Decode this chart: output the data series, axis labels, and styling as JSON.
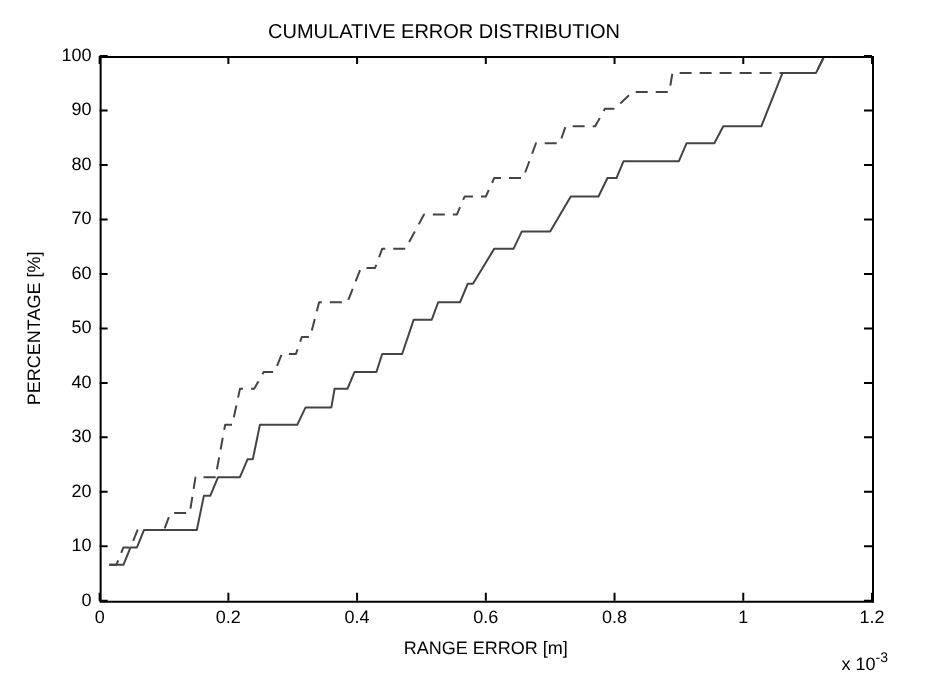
{
  "chart_data": {
    "type": "line",
    "title": "CUMULATIVE ERROR DISTRIBUTION",
    "xlabel": "RANGE ERROR [m]",
    "ylabel": "PERCENTAGE [%]",
    "annotations": [
      "x 10$^{-3}$"
    ],
    "xlim": [
      0,
      1.2
    ],
    "xticks": [
      0,
      0.2,
      0.4,
      0.6,
      0.8,
      1,
      1.2
    ],
    "ylim": [
      0,
      100
    ],
    "yticks": [
      0,
      10,
      20,
      30,
      40,
      50,
      60,
      70,
      80,
      90,
      100
    ],
    "grid": false,
    "legend": false,
    "marker": "none",
    "series": [
      {
        "color": "#444444",
        "line_style": "solid",
        "x": [
          0.015,
          0.037,
          0.048,
          0.058,
          0.069,
          0.151,
          0.162,
          0.172,
          0.184,
          0.218,
          0.23,
          0.238,
          0.249,
          0.307,
          0.32,
          0.36,
          0.365,
          0.385,
          0.396,
          0.43,
          0.439,
          0.47,
          0.488,
          0.516,
          0.526,
          0.56,
          0.572,
          0.58,
          0.613,
          0.643,
          0.656,
          0.7,
          0.732,
          0.775,
          0.789,
          0.803,
          0.814,
          0.9,
          0.912,
          0.955,
          0.969,
          1.028,
          1.061,
          1.113,
          1.126
        ],
        "values": [
          6.6,
          6.6,
          9.8,
          9.8,
          13,
          13,
          19.3,
          19.3,
          22.7,
          22.7,
          26,
          26,
          32.3,
          32.3,
          35.5,
          35.5,
          38.9,
          38.9,
          42,
          42,
          45.3,
          45.3,
          51.6,
          51.6,
          54.8,
          54.8,
          58.2,
          58.2,
          64.6,
          64.6,
          67.8,
          67.8,
          74.2,
          74.2,
          77.6,
          77.6,
          80.7,
          80.7,
          84,
          84,
          87.1,
          87.1,
          96.9,
          96.9,
          100
        ]
      },
      {
        "color": "#444444",
        "line_style": "dashed",
        "x": [
          0.015,
          0.026,
          0.037,
          0.048,
          0.059,
          0.1,
          0.11,
          0.14,
          0.149,
          0.18,
          0.195,
          0.206,
          0.218,
          0.24,
          0.255,
          0.272,
          0.283,
          0.305,
          0.314,
          0.327,
          0.341,
          0.385,
          0.406,
          0.428,
          0.439,
          0.475,
          0.504,
          0.555,
          0.567,
          0.6,
          0.613,
          0.658,
          0.678,
          0.715,
          0.724,
          0.77,
          0.785,
          0.8,
          0.828,
          0.885,
          0.89,
          1.113,
          1.126
        ],
        "values": [
          6.6,
          6.6,
          9.8,
          9.8,
          13,
          13,
          16.1,
          16.1,
          22.7,
          22.7,
          32.3,
          32.3,
          38.9,
          38.9,
          42,
          42,
          45.3,
          45.3,
          48.4,
          48.4,
          54.8,
          54.8,
          61.1,
          61.1,
          64.6,
          64.6,
          70.9,
          70.9,
          74.2,
          74.2,
          77.6,
          77.6,
          84,
          84,
          87.1,
          87.1,
          90.3,
          90.3,
          93.4,
          93.4,
          96.9,
          96.9,
          100
        ]
      }
    ]
  }
}
